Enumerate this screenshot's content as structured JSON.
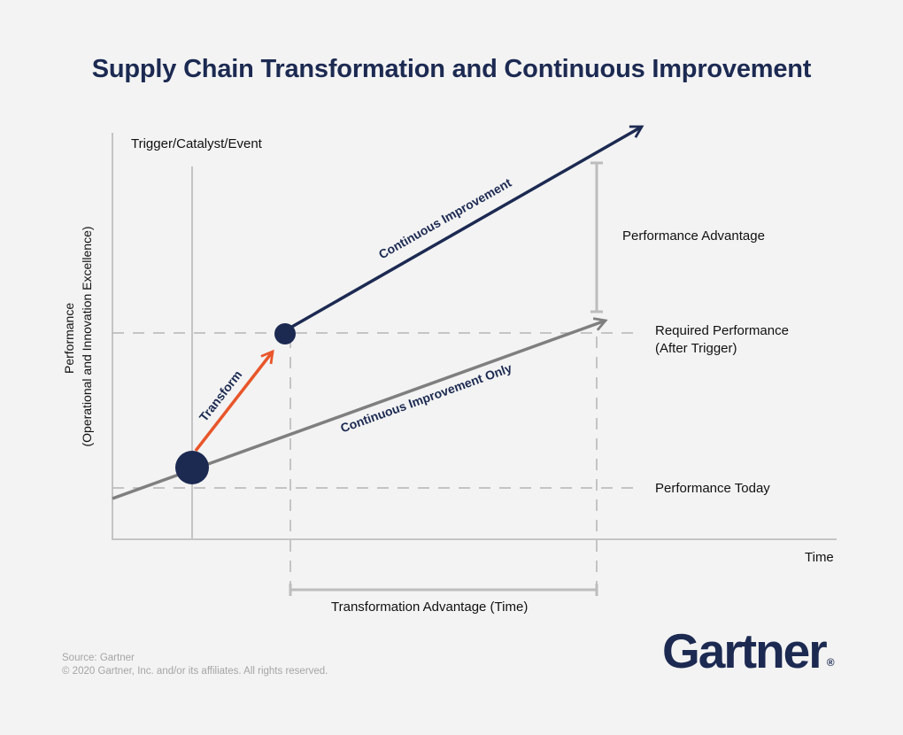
{
  "title": "Supply Chain Transformation and Continuous Improvement",
  "axis": {
    "x_label": "Time",
    "y_label_line1": "Performance",
    "y_label_line2": "(Operational and Innovation Excellence)"
  },
  "labels": {
    "trigger": "Trigger/Catalyst/Event",
    "performance_advantage": "Performance Advantage",
    "required_performance_line1": "Required Performance",
    "required_performance_line2": "(After Trigger)",
    "performance_today": "Performance Today",
    "transformation_advantage": "Transformation Advantage (Time)",
    "continuous_improvement": "Continuous Improvement",
    "continuous_improvement_only": "Continuous Improvement Only",
    "transform": "Transform"
  },
  "footer": {
    "source": "Source: Gartner",
    "copyright": "© 2020 Gartner, Inc. and/or its affiliates. All rights reserved.",
    "logo_text": "Gartner",
    "logo_mark": "®"
  },
  "colors": {
    "navy": "#1c2a52",
    "orange": "#e8562a",
    "gray_line": "#7f7f7f",
    "light_gray": "#bdbdbd",
    "background": "#f3f3f3"
  }
}
